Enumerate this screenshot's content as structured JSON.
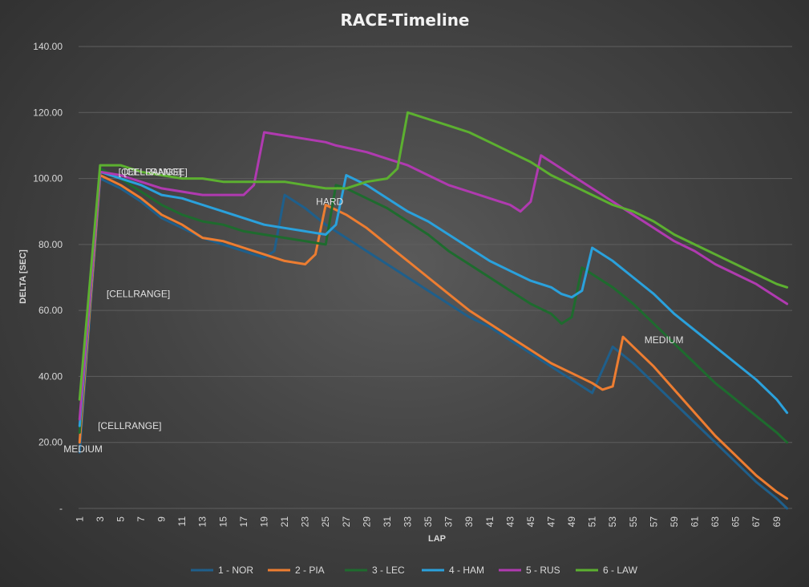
{
  "chart_data": {
    "type": "line",
    "title": "RACE-Timeline",
    "xlabel": "LAP",
    "ylabel": "DELTA [SEC]",
    "ylim": [
      0,
      140
    ],
    "xlim": [
      1,
      70
    ],
    "y_ticks": [
      "-",
      "20.00",
      "40.00",
      "60.00",
      "80.00",
      "100.00",
      "120.00",
      "140.00"
    ],
    "x_ticks": [
      "1",
      "3",
      "5",
      "7",
      "9",
      "11",
      "13",
      "15",
      "17",
      "19",
      "21",
      "23",
      "25",
      "27",
      "29",
      "31",
      "33",
      "35",
      "37",
      "39",
      "41",
      "43",
      "45",
      "47",
      "49",
      "51",
      "53",
      "55",
      "57",
      "59",
      "61",
      "63",
      "65",
      "67",
      "69"
    ],
    "grid": true,
    "legend_position": "bottom",
    "series": [
      {
        "name": "1 - NOR",
        "color": "#1f5f8b",
        "points": [
          [
            1,
            17
          ],
          [
            3,
            100
          ],
          [
            5,
            97
          ],
          [
            7,
            93
          ],
          [
            9,
            88
          ],
          [
            11,
            85
          ],
          [
            13,
            82
          ],
          [
            15,
            80
          ],
          [
            17,
            78
          ],
          [
            19,
            76
          ],
          [
            20,
            78
          ],
          [
            21,
            95
          ],
          [
            23,
            91
          ],
          [
            25,
            86
          ],
          [
            26,
            84
          ],
          [
            29,
            78
          ],
          [
            31,
            74
          ],
          [
            33,
            70
          ],
          [
            35,
            66
          ],
          [
            37,
            62
          ],
          [
            39,
            58
          ],
          [
            41,
            55
          ],
          [
            43,
            51
          ],
          [
            45,
            47
          ],
          [
            47,
            43
          ],
          [
            49,
            39
          ],
          [
            51,
            35
          ],
          [
            53,
            49
          ],
          [
            55,
            44
          ],
          [
            57,
            38
          ],
          [
            59,
            32
          ],
          [
            61,
            26
          ],
          [
            63,
            20
          ],
          [
            65,
            14
          ],
          [
            67,
            8
          ],
          [
            69,
            3
          ],
          [
            70,
            0
          ]
        ]
      },
      {
        "name": "2 - PIA",
        "color": "#ed7d31",
        "points": [
          [
            1,
            20
          ],
          [
            3,
            101
          ],
          [
            5,
            98
          ],
          [
            7,
            94
          ],
          [
            9,
            89
          ],
          [
            11,
            86
          ],
          [
            13,
            82
          ],
          [
            15,
            81
          ],
          [
            17,
            79
          ],
          [
            19,
            77
          ],
          [
            21,
            75
          ],
          [
            23,
            74
          ],
          [
            24,
            77
          ],
          [
            25,
            92
          ],
          [
            27,
            89
          ],
          [
            29,
            85
          ],
          [
            31,
            80
          ],
          [
            33,
            75
          ],
          [
            35,
            70
          ],
          [
            37,
            65
          ],
          [
            39,
            60
          ],
          [
            41,
            56
          ],
          [
            43,
            52
          ],
          [
            45,
            48
          ],
          [
            47,
            44
          ],
          [
            49,
            41
          ],
          [
            51,
            38
          ],
          [
            52,
            36
          ],
          [
            53,
            37
          ],
          [
            54,
            52
          ],
          [
            55,
            49
          ],
          [
            57,
            43
          ],
          [
            59,
            36
          ],
          [
            61,
            29
          ],
          [
            63,
            22
          ],
          [
            65,
            16
          ],
          [
            67,
            10
          ],
          [
            69,
            5
          ],
          [
            70,
            3
          ]
        ]
      },
      {
        "name": "3 - LEC",
        "color": "#1e6b2e",
        "points": [
          [
            1,
            23
          ],
          [
            3,
            103
          ],
          [
            5,
            100
          ],
          [
            7,
            96
          ],
          [
            9,
            92
          ],
          [
            11,
            89
          ],
          [
            13,
            87
          ],
          [
            15,
            86
          ],
          [
            17,
            84
          ],
          [
            19,
            83
          ],
          [
            21,
            82
          ],
          [
            23,
            81
          ],
          [
            25,
            80
          ],
          [
            26,
            98
          ],
          [
            27,
            97
          ],
          [
            29,
            94
          ],
          [
            31,
            91
          ],
          [
            33,
            87
          ],
          [
            35,
            83
          ],
          [
            37,
            78
          ],
          [
            39,
            74
          ],
          [
            41,
            70
          ],
          [
            43,
            66
          ],
          [
            45,
            62
          ],
          [
            47,
            59
          ],
          [
            48,
            56
          ],
          [
            49,
            58
          ],
          [
            50,
            73
          ],
          [
            51,
            71
          ],
          [
            53,
            67
          ],
          [
            55,
            62
          ],
          [
            57,
            56
          ],
          [
            59,
            50
          ],
          [
            61,
            44
          ],
          [
            63,
            38
          ],
          [
            65,
            33
          ],
          [
            67,
            28
          ],
          [
            69,
            23
          ],
          [
            70,
            20
          ]
        ]
      },
      {
        "name": "4 - HAM",
        "color": "#2aa1dc",
        "points": [
          [
            1,
            25
          ],
          [
            3,
            102
          ],
          [
            5,
            100
          ],
          [
            7,
            98
          ],
          [
            9,
            95
          ],
          [
            11,
            94
          ],
          [
            13,
            92
          ],
          [
            15,
            90
          ],
          [
            17,
            88
          ],
          [
            19,
            86
          ],
          [
            21,
            85
          ],
          [
            23,
            84
          ],
          [
            25,
            83
          ],
          [
            26,
            86
          ],
          [
            27,
            101
          ],
          [
            29,
            98
          ],
          [
            31,
            94
          ],
          [
            33,
            90
          ],
          [
            35,
            87
          ],
          [
            37,
            83
          ],
          [
            39,
            79
          ],
          [
            41,
            75
          ],
          [
            43,
            72
          ],
          [
            45,
            69
          ],
          [
            47,
            67
          ],
          [
            48,
            65
          ],
          [
            49,
            64
          ],
          [
            50,
            66
          ],
          [
            51,
            79
          ],
          [
            53,
            75
          ],
          [
            55,
            70
          ],
          [
            57,
            65
          ],
          [
            59,
            59
          ],
          [
            61,
            54
          ],
          [
            63,
            49
          ],
          [
            65,
            44
          ],
          [
            67,
            39
          ],
          [
            69,
            33
          ],
          [
            70,
            29
          ]
        ]
      },
      {
        "name": "5 - RUS",
        "color": "#b03ab0",
        "points": [
          [
            1,
            27
          ],
          [
            3,
            102
          ],
          [
            5,
            101
          ],
          [
            7,
            99
          ],
          [
            9,
            97
          ],
          [
            11,
            96
          ],
          [
            13,
            95
          ],
          [
            15,
            95
          ],
          [
            17,
            95
          ],
          [
            18,
            98
          ],
          [
            19,
            114
          ],
          [
            21,
            113
          ],
          [
            23,
            112
          ],
          [
            25,
            111
          ],
          [
            26,
            110
          ],
          [
            29,
            108
          ],
          [
            31,
            106
          ],
          [
            33,
            104
          ],
          [
            35,
            101
          ],
          [
            37,
            98
          ],
          [
            39,
            96
          ],
          [
            41,
            94
          ],
          [
            43,
            92
          ],
          [
            44,
            90
          ],
          [
            45,
            93
          ],
          [
            46,
            107
          ],
          [
            47,
            105
          ],
          [
            49,
            101
          ],
          [
            51,
            97
          ],
          [
            53,
            93
          ],
          [
            55,
            89
          ],
          [
            57,
            85
          ],
          [
            59,
            81
          ],
          [
            61,
            78
          ],
          [
            63,
            74
          ],
          [
            65,
            71
          ],
          [
            67,
            68
          ],
          [
            69,
            64
          ],
          [
            70,
            62
          ]
        ]
      },
      {
        "name": "6 - LAW",
        "color": "#5cb030",
        "points": [
          [
            1,
            33
          ],
          [
            3,
            104
          ],
          [
            5,
            104
          ],
          [
            7,
            102
          ],
          [
            9,
            101
          ],
          [
            11,
            100
          ],
          [
            13,
            100
          ],
          [
            15,
            99
          ],
          [
            17,
            99
          ],
          [
            19,
            99
          ],
          [
            21,
            99
          ],
          [
            23,
            98
          ],
          [
            25,
            97
          ],
          [
            27,
            97
          ],
          [
            29,
            99
          ],
          [
            31,
            100
          ],
          [
            32,
            103
          ],
          [
            33,
            120
          ],
          [
            35,
            118
          ],
          [
            37,
            116
          ],
          [
            39,
            114
          ],
          [
            41,
            111
          ],
          [
            43,
            108
          ],
          [
            45,
            105
          ],
          [
            47,
            101
          ],
          [
            49,
            98
          ],
          [
            51,
            95
          ],
          [
            53,
            92
          ],
          [
            55,
            90
          ],
          [
            57,
            87
          ],
          [
            59,
            83
          ],
          [
            61,
            80
          ],
          [
            63,
            77
          ],
          [
            65,
            74
          ],
          [
            67,
            71
          ],
          [
            69,
            68
          ],
          [
            70,
            67
          ]
        ]
      }
    ],
    "annotations": [
      {
        "text": "[CELLRANGE]",
        "x": 4,
        "y": 102
      },
      {
        "text": "[CELLRANGE]",
        "x": 5,
        "y": 102
      },
      {
        "text": "[CELLRANGE]",
        "x": 3,
        "y": 65
      },
      {
        "text": "[CELLRANGE]",
        "x": 2,
        "y": 25
      },
      {
        "text": "MEDIUM",
        "x": 1,
        "y": 18
      },
      {
        "text": "HARD",
        "x": 25,
        "y": 93
      },
      {
        "text": "MEDIUM",
        "x": 55,
        "y": 51
      }
    ]
  }
}
